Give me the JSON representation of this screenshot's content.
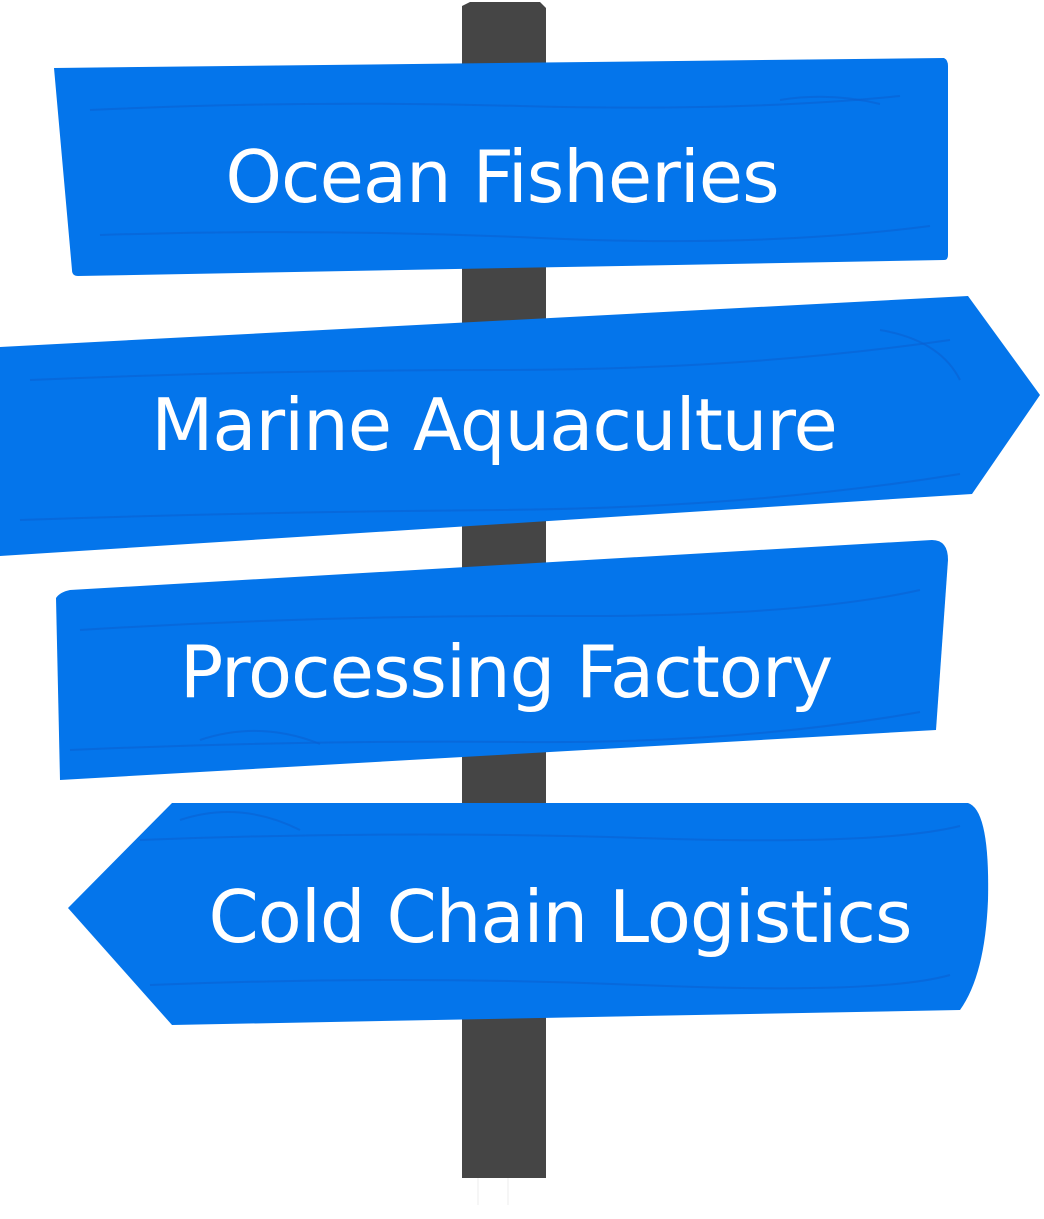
{
  "colors": {
    "sign": "#0475eb",
    "grain": "#0b5fd0",
    "post": "#454545",
    "text": "#ffffff",
    "background": "#ffffff"
  },
  "signs": [
    {
      "label": "Ocean Fisheries",
      "shape": "board"
    },
    {
      "label": "Marine Aquaculture",
      "shape": "arrow-right"
    },
    {
      "label": "Processing Factory",
      "shape": "board"
    },
    {
      "label": "Cold Chain Logistics",
      "shape": "arrow-left"
    }
  ]
}
